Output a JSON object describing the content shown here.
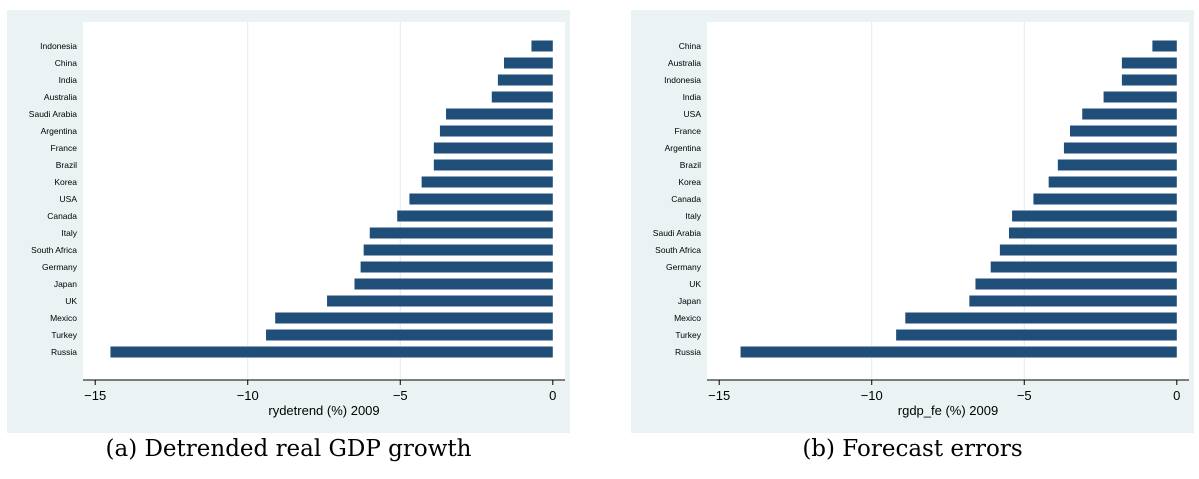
{
  "chart_data": [
    {
      "type": "bar",
      "orientation": "horizontal",
      "categories": [
        "Indonesia",
        "China",
        "India",
        "Australia",
        "Saudi Arabia",
        "Argentina",
        "France",
        "Brazil",
        "Korea",
        "USA",
        "Canada",
        "Italy",
        "South Africa",
        "Germany",
        "Japan",
        "UK",
        "Mexico",
        "Turkey",
        "Russia"
      ],
      "values": [
        -0.7,
        -1.6,
        -1.8,
        -2.0,
        -3.5,
        -3.7,
        -3.9,
        -3.9,
        -4.3,
        -4.7,
        -5.1,
        -6.0,
        -6.2,
        -6.3,
        -6.5,
        -7.4,
        -9.1,
        -9.4,
        -14.5
      ],
      "xlabel": "rydetrend (%) 2009",
      "xlim": [
        -15.4,
        0.4
      ],
      "xticks": [
        -15,
        -10,
        -5,
        0
      ],
      "xtick_labels": [
        "−15",
        "−10",
        "−5",
        "0"
      ],
      "grid": true,
      "bar_color": "#1f4e79",
      "caption": "(a) Detrended real GDP growth"
    },
    {
      "type": "bar",
      "orientation": "horizontal",
      "categories": [
        "China",
        "Australia",
        "Indonesia",
        "India",
        "USA",
        "France",
        "Argentina",
        "Brazil",
        "Korea",
        "Canada",
        "Italy",
        "Saudi Arabia",
        "South Africa",
        "Germany",
        "UK",
        "Japan",
        "Mexico",
        "Turkey",
        "Russia"
      ],
      "values": [
        -0.8,
        -1.8,
        -1.8,
        -2.4,
        -3.1,
        -3.5,
        -3.7,
        -3.9,
        -4.2,
        -4.7,
        -5.4,
        -5.5,
        -5.8,
        -6.1,
        -6.6,
        -6.8,
        -8.9,
        -9.2,
        -14.3
      ],
      "xlabel": "rgdp_fe (%) 2009",
      "xlim": [
        -15.4,
        0.4
      ],
      "xticks": [
        -15,
        -10,
        -5,
        0
      ],
      "xtick_labels": [
        "−15",
        "−10",
        "−5",
        "0"
      ],
      "grid": true,
      "bar_color": "#1f4e79",
      "caption": "(b) Forecast errors"
    }
  ]
}
